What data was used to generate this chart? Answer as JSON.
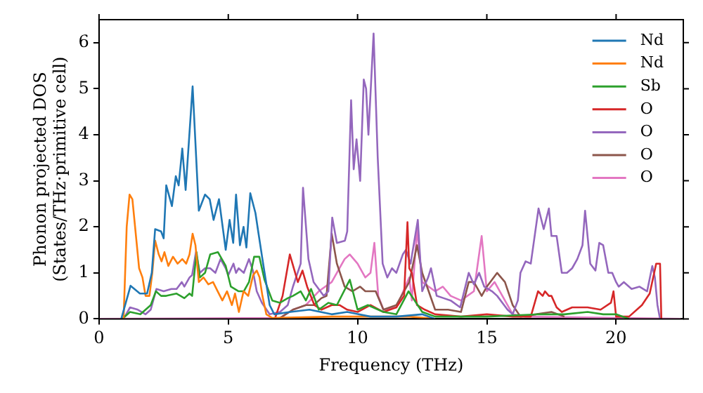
{
  "chart_data": {
    "type": "line",
    "xlabel": "Frequency (THz)",
    "ylabel": "Phonon projected DOS\n(States/THz·primitive cell)",
    "xlim": [
      0,
      22.6
    ],
    "ylim": [
      0,
      6.5
    ],
    "xticks": [
      0,
      5,
      10,
      15,
      20
    ],
    "yticks": [
      0,
      1,
      2,
      3,
      4,
      5,
      6
    ],
    "grid": false,
    "legend": "top right",
    "marker": "none",
    "line_style": "solid",
    "series": [
      {
        "name": "Nd",
        "color": "#1f77b4",
        "x": [
          0.86,
          1.22,
          1.58,
          1.86,
          2.04,
          2.17,
          2.4,
          2.5,
          2.6,
          2.82,
          2.97,
          3.08,
          3.22,
          3.35,
          3.62,
          3.86,
          4.1,
          4.28,
          4.43,
          4.64,
          4.9,
          5.05,
          5.19,
          5.3,
          5.45,
          5.59,
          5.7,
          5.85,
          6.05,
          6.17,
          6.32,
          6.6,
          6.78,
          7.4,
          8.14,
          9,
          9.6,
          10.5,
          11.5,
          12.5,
          13
        ],
        "values": [
          0,
          0.72,
          0.55,
          0.55,
          1.0,
          1.95,
          1.9,
          1.75,
          2.9,
          2.45,
          3.1,
          2.9,
          3.7,
          2.8,
          5.05,
          2.35,
          2.7,
          2.6,
          2.15,
          2.6,
          1.5,
          2.15,
          1.65,
          2.7,
          1.6,
          2.0,
          1.55,
          2.73,
          2.3,
          1.85,
          1.3,
          0.3,
          0.1,
          0.15,
          0.2,
          0.1,
          0.15,
          0.05,
          0.05,
          0.1,
          0
        ]
      },
      {
        "name": "Nd",
        "color": "#ff7f0e",
        "x": [
          0.95,
          1.07,
          1.18,
          1.29,
          1.55,
          1.68,
          1.8,
          1.95,
          2.06,
          2.17,
          2.31,
          2.42,
          2.53,
          2.68,
          2.86,
          3.04,
          3.22,
          3.37,
          3.5,
          3.62,
          3.73,
          3.86,
          4.04,
          4.23,
          4.41,
          4.59,
          4.77,
          4.95,
          5.14,
          5.26,
          5.41,
          5.59,
          5.77,
          5.96,
          6.1,
          6.21,
          6.32,
          6.47,
          6.7,
          9,
          12,
          13
        ],
        "values": [
          0,
          2.0,
          2.7,
          2.6,
          1.1,
          0.9,
          0.5,
          0.5,
          1.0,
          1.7,
          1.4,
          1.25,
          1.45,
          1.15,
          1.35,
          1.2,
          1.3,
          1.2,
          1.4,
          1.85,
          1.6,
          0.8,
          0.9,
          0.75,
          0.8,
          0.6,
          0.4,
          0.6,
          0.3,
          0.55,
          0.15,
          0.6,
          0.5,
          0.95,
          1.05,
          0.9,
          0.5,
          0.1,
          0.02,
          0.05,
          0.05,
          0
        ]
      },
      {
        "name": "Sb",
        "color": "#2ca02c",
        "x": [
          0.9,
          1.2,
          1.6,
          2.0,
          2.2,
          2.4,
          2.6,
          3.0,
          3.3,
          3.5,
          3.6,
          3.77,
          3.9,
          4.1,
          4.3,
          4.6,
          4.9,
          5.1,
          5.4,
          5.6,
          5.8,
          6.0,
          6.2,
          6.4,
          6.7,
          7.0,
          7.3,
          7.5,
          7.8,
          8.0,
          8.2,
          8.5,
          8.87,
          9.2,
          9.7,
          10.0,
          10.4,
          11.0,
          11.5,
          11.97,
          12.5,
          13,
          15,
          17,
          18,
          18.9,
          19.5,
          20,
          20.5
        ],
        "values": [
          0,
          0.15,
          0.1,
          0.3,
          0.6,
          0.5,
          0.5,
          0.55,
          0.45,
          0.55,
          0.5,
          1.45,
          0.9,
          1.0,
          1.4,
          1.45,
          1.15,
          0.7,
          0.6,
          0.6,
          0.8,
          1.35,
          1.35,
          0.85,
          0.4,
          0.35,
          0.45,
          0.5,
          0.6,
          0.4,
          0.65,
          0.2,
          0.35,
          0.3,
          0.85,
          0.2,
          0.3,
          0.15,
          0.1,
          0.6,
          0.15,
          0.05,
          0.05,
          0.1,
          0.1,
          0.15,
          0.1,
          0.1,
          0
        ]
      },
      {
        "name": "O",
        "color": "#d62728",
        "x": [
          6.8,
          7.1,
          7.38,
          7.69,
          7.87,
          8.05,
          8.33,
          8.6,
          9,
          9.3,
          9.6,
          10,
          10.5,
          11,
          11.5,
          11.8,
          11.93,
          12.0,
          12.1,
          12.3,
          12.6,
          13,
          14,
          15,
          16,
          16.7,
          16.98,
          17.16,
          17.25,
          17.4,
          17.5,
          17.7,
          17.9,
          18.3,
          18.9,
          19.4,
          19.8,
          19.9,
          20.0,
          20.5,
          21.0,
          21.3,
          21.55,
          21.7,
          21.75
        ],
        "values": [
          0,
          0.5,
          1.4,
          0.8,
          1.05,
          0.7,
          0.3,
          0.2,
          0.3,
          0.3,
          0.2,
          0.15,
          0.3,
          0.15,
          0.25,
          0.5,
          2.1,
          1.1,
          1.0,
          0.3,
          0.2,
          0.1,
          0.05,
          0.1,
          0.05,
          0.05,
          0.6,
          0.5,
          0.6,
          0.5,
          0.5,
          0.25,
          0.15,
          0.25,
          0.25,
          0.2,
          0.35,
          0.6,
          0.05,
          0.05,
          0.3,
          0.55,
          1.2,
          1.2,
          0
        ]
      },
      {
        "name": "O",
        "color": "#9467bd",
        "x": [
          1.0,
          1.2,
          1.5,
          1.8,
          2.0,
          2.22,
          2.5,
          2.8,
          3.0,
          3.2,
          3.3,
          3.5,
          3.6,
          3.75,
          3.9,
          4.1,
          4.3,
          4.5,
          4.7,
          4.9,
          5.0,
          5.2,
          5.3,
          5.4,
          5.6,
          5.8,
          5.95,
          6.1,
          6.3,
          6.6,
          7.0,
          7.3,
          7.5,
          7.8,
          7.89,
          8.1,
          8.3,
          8.69,
          8.87,
          9.02,
          9.2,
          9.51,
          9.6,
          9.75,
          9.85,
          9.96,
          10.1,
          10.24,
          10.33,
          10.42,
          10.62,
          10.78,
          10.97,
          11.15,
          11.33,
          11.5,
          11.75,
          11.87,
          12.05,
          12.33,
          12.5,
          12.73,
          12.84,
          13.06,
          13.33,
          13.6,
          13.97,
          14.3,
          14.5,
          14.7,
          14.9,
          15.2,
          15.4,
          15.8,
          16.0,
          16.2,
          16.3,
          16.5,
          16.7,
          17.0,
          17.2,
          17.4,
          17.5,
          17.7,
          17.9,
          18.1,
          18.3,
          18.5,
          18.7,
          18.8,
          19.0,
          19.2,
          19.35,
          19.5,
          19.7,
          19.85,
          20.0,
          20.1,
          20.3,
          20.6,
          20.9,
          21.2,
          21.4,
          21.5,
          21.6,
          21.7
        ],
        "values": [
          0.05,
          0.25,
          0.2,
          0.1,
          0.2,
          0.65,
          0.6,
          0.65,
          0.65,
          0.8,
          0.7,
          0.9,
          0.95,
          1.45,
          1.0,
          1.1,
          1.1,
          1.0,
          1.3,
          1.1,
          0.95,
          1.2,
          1.0,
          1.1,
          1.0,
          1.3,
          1.05,
          0.6,
          0.35,
          0.1,
          0.15,
          0.3,
          0.7,
          1.2,
          2.85,
          1.3,
          0.8,
          0.5,
          0.6,
          2.2,
          1.65,
          1.7,
          1.9,
          4.75,
          3.25,
          3.9,
          3.0,
          5.2,
          5.0,
          4.0,
          6.2,
          3.5,
          1.2,
          0.9,
          1.1,
          1.0,
          1.4,
          1.5,
          1.2,
          2.15,
          0.6,
          0.9,
          1.1,
          0.5,
          0.45,
          0.4,
          0.25,
          1.0,
          0.75,
          1.0,
          0.7,
          0.6,
          0.5,
          0.2,
          0.1,
          0.4,
          1.0,
          1.25,
          1.2,
          2.4,
          1.95,
          2.4,
          1.8,
          1.8,
          1.0,
          1.0,
          1.1,
          1.3,
          1.6,
          2.35,
          1.2,
          1.05,
          1.65,
          1.6,
          1.0,
          1.0,
          0.8,
          0.7,
          0.8,
          0.65,
          0.7,
          0.6,
          1.15,
          0.9,
          0.3,
          0
        ]
      },
      {
        "name": "O",
        "color": "#8c564b",
        "x": [
          7.0,
          7.5,
          8.0,
          8.3,
          8.6,
          8.8,
          9.0,
          9.2,
          9.5,
          9.8,
          10.1,
          10.3,
          10.5,
          10.7,
          11.0,
          11.5,
          12.0,
          12.3,
          12.5,
          13,
          13.5,
          14,
          14.3,
          14.5,
          14.8,
          15.0,
          15.4,
          15.7,
          16.0,
          16.3,
          17.5,
          18
        ],
        "values": [
          0.02,
          0.2,
          0.3,
          0.3,
          0.45,
          0.5,
          1.85,
          1.2,
          0.7,
          0.6,
          0.7,
          0.6,
          0.6,
          0.6,
          0.2,
          0.3,
          0.8,
          1.6,
          1.0,
          0.2,
          0.2,
          0.15,
          0.8,
          0.8,
          0.5,
          0.7,
          1.0,
          0.8,
          0.3,
          0.05,
          0.15,
          0.05
        ]
      },
      {
        "name": "O",
        "color": "#e377c2",
        "x": [
          0,
          7.0,
          7.5,
          8.0,
          8.5,
          9.0,
          9.5,
          9.7,
          10.0,
          10.3,
          10.5,
          10.65,
          10.8,
          11.0,
          11.5,
          12.0,
          12.1,
          12.3,
          12.5,
          13,
          13.3,
          13.6,
          14,
          14.5,
          14.8,
          15.0,
          15.3,
          15.7,
          16.0,
          16.5,
          22.5
        ],
        "values": [
          0,
          0.02,
          0.2,
          0.3,
          0.6,
          0.8,
          1.3,
          1.4,
          1.2,
          0.9,
          1.0,
          1.65,
          0.5,
          0.2,
          0.25,
          0.9,
          0.4,
          1.95,
          0.8,
          0.6,
          0.7,
          0.5,
          0.4,
          0.6,
          1.8,
          0.6,
          0.8,
          0.4,
          0.1,
          0.05,
          0
        ]
      }
    ]
  }
}
